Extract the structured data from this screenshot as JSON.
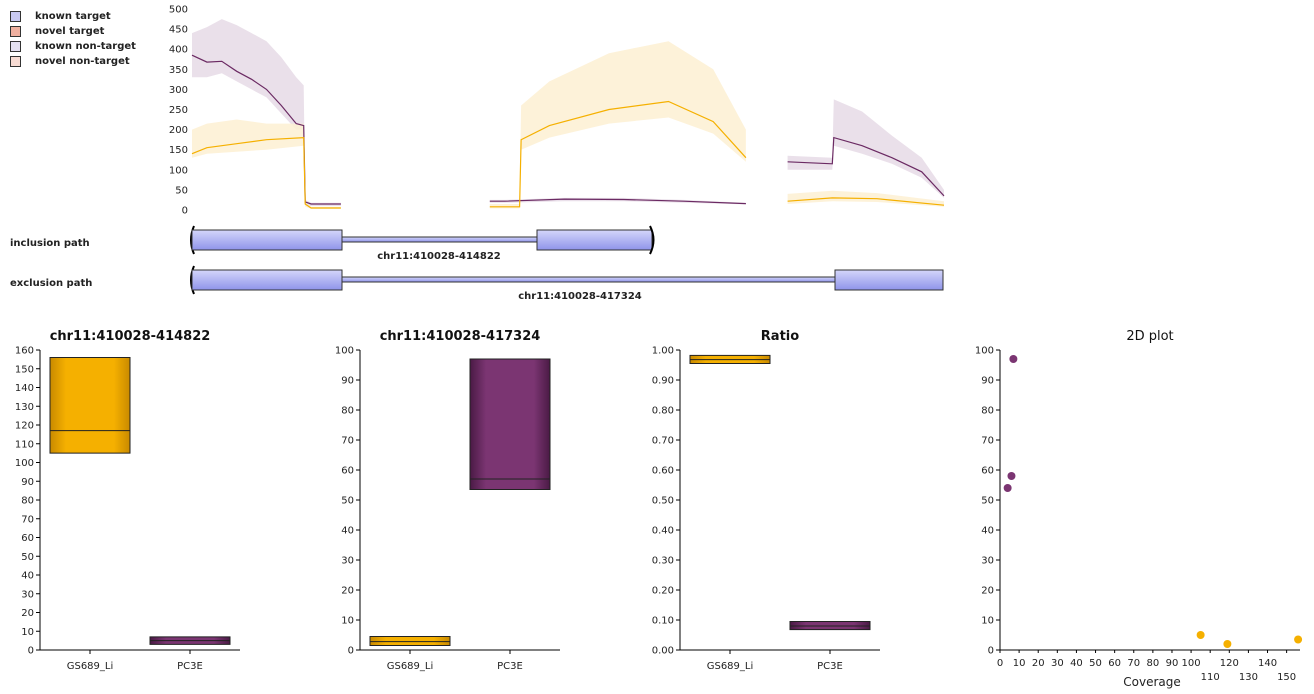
{
  "legend": [
    {
      "label": "known target",
      "color": "#c8c8f0"
    },
    {
      "label": "novel target",
      "color": "#f0b0a0"
    },
    {
      "label": "known non-target",
      "color": "#e4e0f0"
    },
    {
      "label": "novel non-target",
      "color": "#f8dcd4"
    }
  ],
  "paths": {
    "inclusion_label": "inclusion path",
    "exclusion_label": "exclusion path",
    "inclusion_coord": "chr11:410028-414822",
    "exclusion_coord": "chr11:410028-417324"
  },
  "colors": {
    "purple": "#6b2a63",
    "purple_band": "#e6dbe6",
    "orange": "#f5b000",
    "orange_band": "#fdf0d2",
    "exon_fill": "#a8acf0"
  },
  "chart_data": [
    {
      "type": "area",
      "title": "",
      "ylim": [
        0,
        500
      ],
      "yticks": [
        0,
        50,
        100,
        150,
        200,
        250,
        300,
        350,
        400,
        450,
        500
      ],
      "series": [
        {
          "color": "purple",
          "segments": [
            {
              "x": [
                0,
                10,
                20,
                30,
                40,
                50,
                60,
                70,
                75,
                76,
                80,
                100
              ],
              "mean": [
                385,
                368,
                370,
                345,
                325,
                300,
                260,
                215,
                210,
                20,
                15,
                15
              ],
              "upper": [
                440,
                455,
                475,
                460,
                440,
                420,
                380,
                330,
                310,
                25,
                18,
                18
              ],
              "lower": [
                330,
                330,
                340,
                320,
                300,
                280,
                240,
                200,
                200,
                10,
                10,
                10
              ]
            },
            {
              "x": [
                200,
                210,
                250,
                290,
                330,
                372
              ],
              "mean": [
                22,
                22,
                27,
                26,
                22,
                16
              ],
              "upper": [
                25,
                25,
                30,
                30,
                25,
                18
              ],
              "lower": [
                18,
                18,
                22,
                22,
                18,
                14
              ]
            },
            {
              "x": [
                400,
                430,
                431,
                450,
                470,
                490,
                505
              ],
              "mean": [
                120,
                115,
                180,
                160,
                130,
                95,
                35
              ],
              "upper": [
                135,
                130,
                275,
                245,
                185,
                130,
                50
              ],
              "lower": [
                100,
                100,
                160,
                140,
                115,
                80,
                30
              ]
            }
          ]
        },
        {
          "color": "orange",
          "segments": [
            {
              "x": [
                0,
                10,
                30,
                50,
                75,
                76,
                80,
                100
              ],
              "mean": [
                140,
                155,
                165,
                175,
                180,
                15,
                5,
                5
              ],
              "upper": [
                200,
                215,
                225,
                215,
                215,
                20,
                8,
                8
              ],
              "lower": [
                130,
                140,
                145,
                150,
                160,
                8,
                3,
                3
              ]
            },
            {
              "x": [
                200,
                220,
                221,
                240,
                280,
                320,
                350,
                372
              ],
              "mean": [
                8,
                8,
                175,
                210,
                250,
                270,
                220,
                130
              ],
              "upper": [
                15,
                15,
                260,
                320,
                390,
                420,
                350,
                200
              ],
              "lower": [
                4,
                4,
                150,
                180,
                215,
                230,
                190,
                120
              ]
            },
            {
              "x": [
                400,
                430,
                460,
                505
              ],
              "mean": [
                22,
                30,
                28,
                12
              ],
              "upper": [
                40,
                48,
                42,
                22
              ],
              "lower": [
                15,
                22,
                20,
                8
              ]
            }
          ]
        }
      ]
    },
    {
      "type": "bar",
      "title": "chr11:410028-414822",
      "categories": [
        "GS689_Li",
        "PC3E"
      ],
      "boxes": [
        {
          "low": 105,
          "mid": 117,
          "high": 156,
          "color": "orange"
        },
        {
          "low": 3,
          "mid": 5,
          "high": 7,
          "color": "purple"
        }
      ],
      "ylim": [
        0,
        160
      ],
      "yticks": [
        0,
        10,
        20,
        30,
        40,
        50,
        60,
        70,
        80,
        90,
        100,
        110,
        120,
        130,
        140,
        150,
        160
      ]
    },
    {
      "type": "bar",
      "title": "chr11:410028-417324",
      "categories": [
        "GS689_Li",
        "PC3E"
      ],
      "boxes": [
        {
          "low": 1.5,
          "mid": 2.8,
          "high": 4.5,
          "color": "orange"
        },
        {
          "low": 53.5,
          "mid": 57,
          "high": 97,
          "color": "purple"
        }
      ],
      "ylim": [
        0,
        100
      ],
      "yticks": [
        0,
        10,
        20,
        30,
        40,
        50,
        60,
        70,
        80,
        90,
        100
      ]
    },
    {
      "type": "bar",
      "title": "Ratio",
      "categories": [
        "GS689_Li",
        "PC3E"
      ],
      "boxes": [
        {
          "low": 0.955,
          "mid": 0.968,
          "high": 0.982,
          "color": "orange"
        },
        {
          "low": 0.068,
          "mid": 0.08,
          "high": 0.095,
          "color": "purple"
        }
      ],
      "ylim": [
        0,
        1
      ],
      "yticks": [
        "0.00",
        "0.10",
        "0.20",
        "0.30",
        "0.40",
        "0.50",
        "0.60",
        "0.70",
        "0.80",
        "0.90",
        "1.00"
      ]
    },
    {
      "type": "scatter",
      "title": "2D plot",
      "xlabel": "Coverage",
      "xlim": [
        0,
        157
      ],
      "ylim": [
        0,
        100
      ],
      "xticks": [
        0,
        10,
        20,
        30,
        40,
        50,
        60,
        70,
        80,
        90,
        100,
        110,
        120,
        130,
        140,
        150
      ],
      "yticks": [
        0,
        10,
        20,
        30,
        40,
        50,
        60,
        70,
        80,
        90,
        100
      ],
      "points": [
        {
          "x": 7,
          "y": 97,
          "color": "purple"
        },
        {
          "x": 6,
          "y": 58,
          "color": "purple"
        },
        {
          "x": 4,
          "y": 54,
          "color": "purple"
        },
        {
          "x": 105,
          "y": 5,
          "color": "orange"
        },
        {
          "x": 119,
          "y": 2,
          "color": "orange"
        },
        {
          "x": 156,
          "y": 3.5,
          "color": "orange"
        }
      ]
    }
  ]
}
